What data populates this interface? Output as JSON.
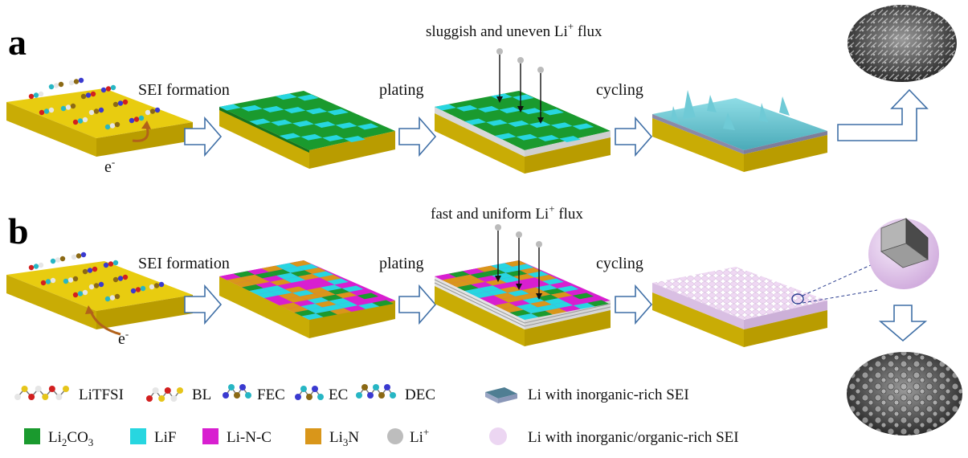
{
  "panels": {
    "a": {
      "letter": "a",
      "step1": "SEI formation",
      "step2": "plating",
      "step3": "cycling",
      "flux": "sluggish and uneven Li",
      "flux_sup": "+",
      "flux_tail": " flux",
      "electron": "e",
      "electron_sup": "-"
    },
    "b": {
      "letter": "b",
      "step1": "SEI formation",
      "step2": "plating",
      "step3": "cycling",
      "flux": "fast and uniform Li",
      "flux_sup": "+",
      "flux_tail": " flux",
      "electron": "e",
      "electron_sup": "-"
    }
  },
  "legend": {
    "molecules": [
      {
        "label": "LiTFSI"
      },
      {
        "label": "BL"
      },
      {
        "label": "FEC"
      },
      {
        "label": "EC"
      },
      {
        "label": "DEC"
      }
    ],
    "species": [
      {
        "pre": "Li",
        "sub": "2",
        "post": "CO",
        "sub2": "3",
        "color": "#1a9a2e"
      },
      {
        "pre": "LiF",
        "sub": "",
        "post": "",
        "sub2": "",
        "color": "#27d6e0"
      },
      {
        "pre": "Li-N-C",
        "sub": "",
        "post": "",
        "sub2": "",
        "color": "#d81fd0"
      },
      {
        "pre": "Li",
        "sub": "3",
        "post": "N",
        "sub2": "",
        "color": "#d9961a"
      },
      {
        "pre": "Li",
        "sup": "+",
        "color": "#bdbdbd"
      }
    ],
    "li_inorganic": "Li with inorganic-rich SEI",
    "li_mixed": "Li with inorganic/organic-rich SEI"
  },
  "colors": {
    "substrate_top": "#e8cc10",
    "substrate_front": "#b99c00",
    "sei_green": "#1a9a2e",
    "sei_cyan": "#27d6e0",
    "sei_magenta": "#d81fd0",
    "sei_orange": "#d9961a",
    "dendrite_blue": "#5bbcc9",
    "sphere_pink": "#e6cdee",
    "arrow_outline": "#3f6fa6"
  }
}
